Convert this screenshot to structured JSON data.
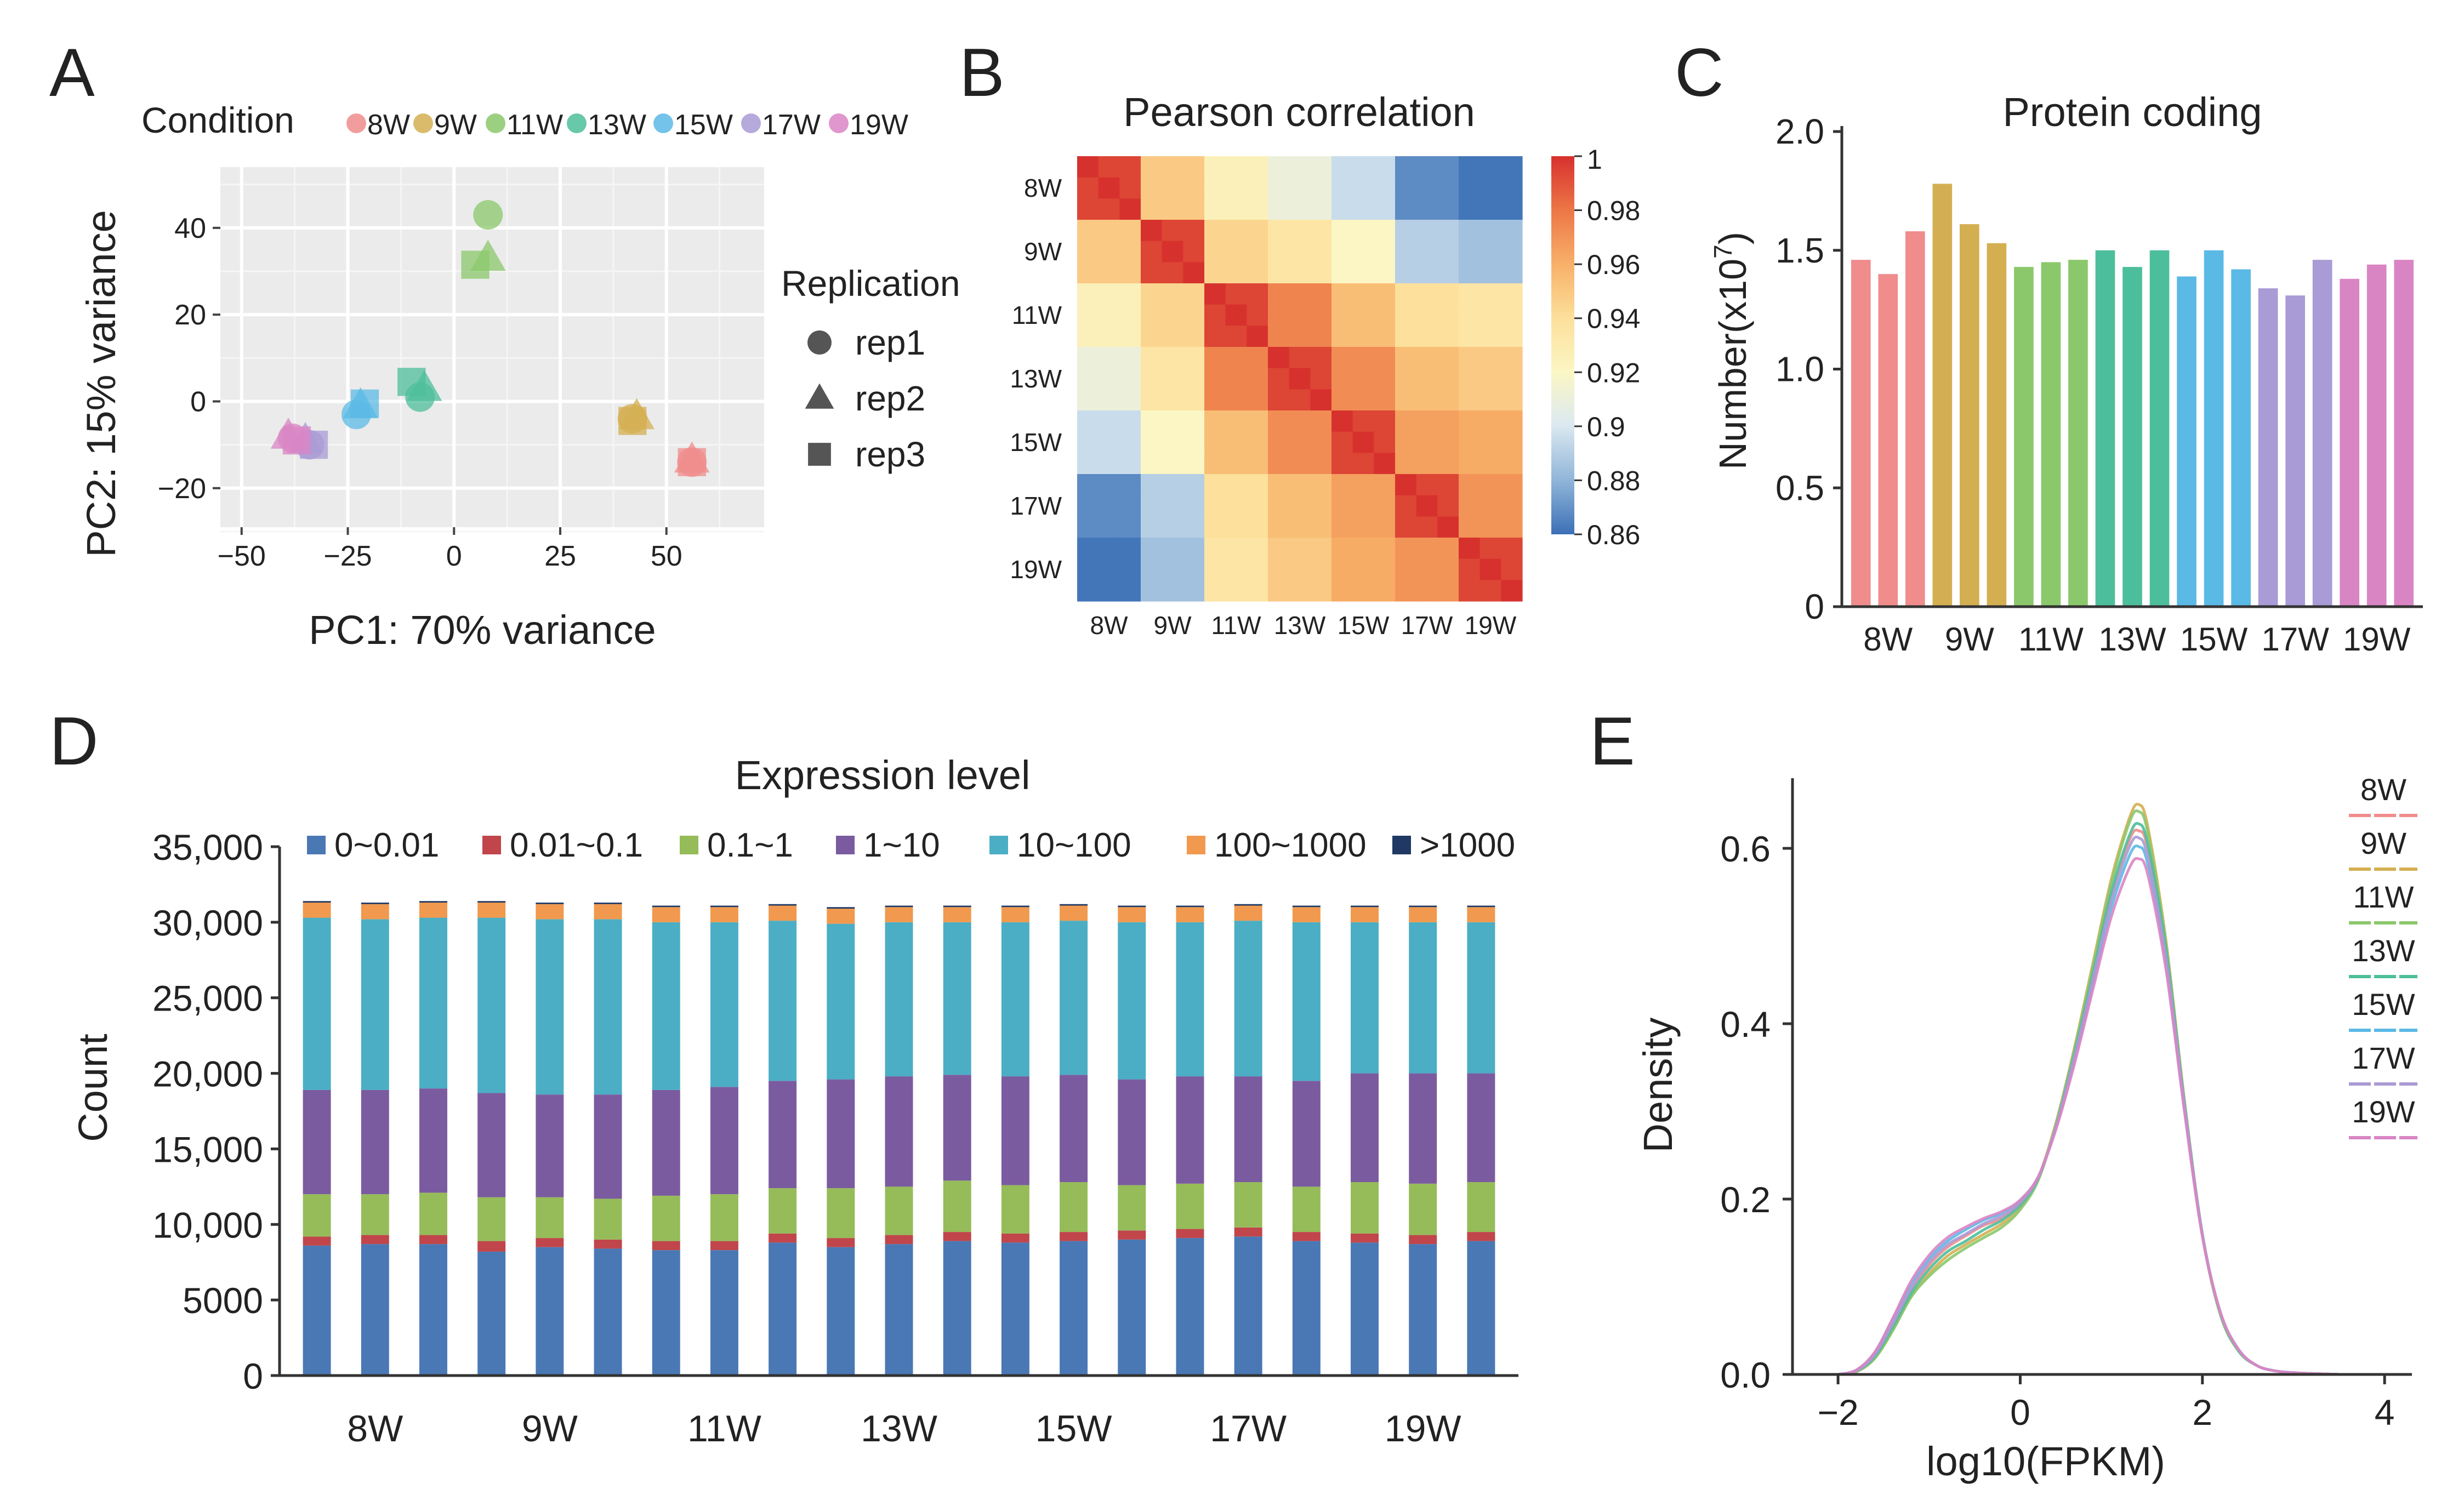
{
  "panel_letters": {
    "a": "A",
    "b": "B",
    "c": "C",
    "d": "D",
    "e": "E"
  },
  "colors": {
    "8W": "#F08C8C",
    "9W": "#D4AF52",
    "11W": "#8BC86B",
    "13W": "#4DBE9B",
    "15W": "#5BB9E6",
    "17W": "#A99BD6",
    "19W": "#D985C4",
    "bin_colors": [
      "#4A78B5",
      "#C0464B",
      "#95BC59",
      "#7B5B9F",
      "#4BAEC4",
      "#F1994E",
      "#1F3864"
    ]
  },
  "chart_data": [
    {
      "id": "pca",
      "type": "scatter",
      "xlabel": "PC1: 70% variance",
      "ylabel": "PC2: 15% variance",
      "xlim": [
        -55,
        73
      ],
      "ylim": [
        -29,
        54
      ],
      "xticks": [
        -50,
        -25,
        0,
        25,
        50
      ],
      "yticks": [
        -20,
        0,
        20,
        40
      ],
      "xtick_labels": [
        "−50",
        "−25",
        "0",
        "25",
        "50"
      ],
      "ytick_labels": [
        "−20",
        "0",
        "20",
        "40"
      ],
      "legend_condition_title": "Condition",
      "conditions": [
        "8W",
        "9W",
        "11W",
        "13W",
        "15W",
        "17W",
        "19W"
      ],
      "legend_rep_title": "Replication",
      "reps": [
        "rep1",
        "rep2",
        "rep3"
      ],
      "points": [
        {
          "cond": "8W",
          "rep": "rep1",
          "x": 56,
          "y": -14
        },
        {
          "cond": "8W",
          "rep": "rep2",
          "x": 56,
          "y": -13.5
        },
        {
          "cond": "8W",
          "rep": "rep3",
          "x": 56,
          "y": -14
        },
        {
          "cond": "9W",
          "rep": "rep1",
          "x": 42,
          "y": -4
        },
        {
          "cond": "9W",
          "rep": "rep2",
          "x": 43,
          "y": -3.5
        },
        {
          "cond": "9W",
          "rep": "rep3",
          "x": 42,
          "y": -4.5
        },
        {
          "cond": "11W",
          "rep": "rep1",
          "x": 8,
          "y": 43
        },
        {
          "cond": "11W",
          "rep": "rep2",
          "x": 8,
          "y": 33
        },
        {
          "cond": "11W",
          "rep": "rep3",
          "x": 5,
          "y": 31.5
        },
        {
          "cond": "13W",
          "rep": "rep1",
          "x": -8,
          "y": 1
        },
        {
          "cond": "13W",
          "rep": "rep2",
          "x": -7,
          "y": 3
        },
        {
          "cond": "13W",
          "rep": "rep3",
          "x": -10,
          "y": 4.5
        },
        {
          "cond": "15W",
          "rep": "rep1",
          "x": -23,
          "y": -3
        },
        {
          "cond": "15W",
          "rep": "rep2",
          "x": -22,
          "y": -1
        },
        {
          "cond": "15W",
          "rep": "rep3",
          "x": -21,
          "y": -0.5
        },
        {
          "cond": "17W",
          "rep": "rep1",
          "x": -34,
          "y": -10
        },
        {
          "cond": "17W",
          "rep": "rep2",
          "x": -35,
          "y": -9
        },
        {
          "cond": "17W",
          "rep": "rep3",
          "x": -33,
          "y": -10
        },
        {
          "cond": "19W",
          "rep": "rep1",
          "x": -38,
          "y": -8.5
        },
        {
          "cond": "19W",
          "rep": "rep2",
          "x": -39,
          "y": -8
        },
        {
          "cond": "19W",
          "rep": "rep3",
          "x": -37,
          "y": -9
        }
      ]
    },
    {
      "id": "pearson",
      "type": "heatmap",
      "title": "Pearson correlation",
      "groups": [
        "8W",
        "9W",
        "11W",
        "13W",
        "15W",
        "17W",
        "19W"
      ],
      "group_corr": [
        [
          1.0,
          0.95,
          0.925,
          0.91,
          0.895,
          0.868,
          0.862
        ],
        [
          0.95,
          1.0,
          0.945,
          0.935,
          0.92,
          0.89,
          0.885
        ],
        [
          0.925,
          0.945,
          1.0,
          0.975,
          0.955,
          0.94,
          0.935
        ],
        [
          0.91,
          0.935,
          0.975,
          1.0,
          0.972,
          0.955,
          0.95
        ],
        [
          0.895,
          0.92,
          0.955,
          0.972,
          1.0,
          0.966,
          0.962
        ],
        [
          0.868,
          0.89,
          0.94,
          0.955,
          0.966,
          1.0,
          0.97
        ],
        [
          0.862,
          0.885,
          0.935,
          0.95,
          0.962,
          0.97,
          1.0
        ]
      ],
      "colorbar_ticks": [
        1,
        0.98,
        0.96,
        0.94,
        0.92,
        0.9,
        0.88,
        0.86
      ],
      "colorbar_labels": [
        "1",
        "0.98",
        "0.96",
        "0.94",
        "0.92",
        "0.9",
        "0.88",
        "0.86"
      ],
      "color_range": [
        0.86,
        1.0
      ]
    },
    {
      "id": "protein",
      "type": "bar",
      "title": "Protein coding",
      "ylabel": "Number(x10",
      "ylabel_sup": "7",
      "ylabel_end": ")",
      "ylim": [
        0,
        2.0
      ],
      "yticks": [
        0,
        0.5,
        1.0,
        1.5,
        2.0
      ],
      "ytick_labels": [
        "0",
        "0.5",
        "1.0",
        "1.5",
        "2.0"
      ],
      "groups": [
        "8W",
        "9W",
        "11W",
        "13W",
        "15W",
        "17W",
        "19W"
      ],
      "values": [
        1.46,
        1.4,
        1.58,
        1.78,
        1.61,
        1.53,
        1.43,
        1.45,
        1.46,
        1.5,
        1.43,
        1.5,
        1.39,
        1.5,
        1.42,
        1.34,
        1.31,
        1.46,
        1.38,
        1.44,
        1.46
      ]
    },
    {
      "id": "expression",
      "type": "bar",
      "stacked": true,
      "title": "Expression level",
      "ylabel": "Count",
      "ylim": [
        0,
        35000
      ],
      "yticks": [
        0,
        5000,
        10000,
        15000,
        20000,
        25000,
        30000,
        35000
      ],
      "ytick_labels": [
        "0",
        "5000",
        "10,000",
        "15,000",
        "20,000",
        "25,000",
        "30,000",
        "35,000"
      ],
      "groups": [
        "8W",
        "9W",
        "11W",
        "13W",
        "15W",
        "17W",
        "19W"
      ],
      "bins": [
        "0~0.01",
        "0.01~0.1",
        "0.1~1",
        "1~10",
        "10~100",
        "100~1000",
        ">1000"
      ],
      "stacks": [
        [
          8600,
          600,
          2800,
          6900,
          11400,
          1000,
          100
        ],
        [
          8700,
          600,
          2700,
          6900,
          11300,
          1000,
          100
        ],
        [
          8700,
          600,
          2800,
          6900,
          11300,
          1000,
          100
        ],
        [
          8200,
          700,
          2900,
          6900,
          11600,
          1000,
          100
        ],
        [
          8500,
          600,
          2700,
          6800,
          11600,
          1000,
          100
        ],
        [
          8400,
          600,
          2700,
          6900,
          11600,
          1000,
          100
        ],
        [
          8300,
          600,
          3000,
          7000,
          11100,
          1000,
          100
        ],
        [
          8300,
          600,
          3100,
          7100,
          10900,
          1000,
          100
        ],
        [
          8800,
          600,
          3000,
          7100,
          10600,
          1000,
          100
        ],
        [
          8500,
          600,
          3300,
          7200,
          10300,
          1000,
          100
        ],
        [
          8700,
          600,
          3200,
          7300,
          10200,
          1000,
          100
        ],
        [
          8900,
          600,
          3400,
          7000,
          10100,
          1000,
          100
        ],
        [
          8800,
          600,
          3200,
          7200,
          10200,
          1000,
          100
        ],
        [
          8900,
          600,
          3300,
          7100,
          10200,
          1000,
          100
        ],
        [
          9000,
          600,
          3000,
          7000,
          10400,
          1000,
          100
        ],
        [
          9100,
          600,
          3000,
          7100,
          10200,
          1000,
          100
        ],
        [
          9200,
          600,
          3000,
          7000,
          10300,
          1000,
          100
        ],
        [
          8900,
          600,
          3000,
          7000,
          10500,
          1000,
          100
        ],
        [
          8800,
          600,
          3400,
          7200,
          10000,
          1000,
          100
        ],
        [
          8700,
          600,
          3400,
          7300,
          10000,
          1000,
          100
        ],
        [
          8900,
          600,
          3300,
          7200,
          10000,
          1000,
          100
        ]
      ]
    },
    {
      "id": "density",
      "type": "line",
      "xlabel": "log10(FPKM)",
      "ylabel": "Density",
      "xlim": [
        -2.5,
        4.3
      ],
      "ylim": [
        0,
        0.68
      ],
      "xticks": [
        -2,
        0,
        2,
        4
      ],
      "xtick_labels": [
        "−2",
        "0",
        "2",
        "4"
      ],
      "yticks": [
        0,
        0.2,
        0.4,
        0.6
      ],
      "ytick_labels": [
        "0.0",
        "0.2",
        "0.4",
        "0.6"
      ],
      "x": [
        -2.0,
        -1.8,
        -1.6,
        -1.4,
        -1.2,
        -1.0,
        -0.8,
        -0.6,
        -0.4,
        -0.2,
        0.0,
        0.2,
        0.4,
        0.6,
        0.8,
        1.0,
        1.2,
        1.3,
        1.4,
        1.6,
        1.8,
        2.0,
        2.2,
        2.4,
        2.6,
        2.8,
        3.0,
        3.2,
        3.5
      ],
      "series": [
        {
          "name": "8W",
          "values": [
            0.0,
            0.004,
            0.02,
            0.055,
            0.095,
            0.125,
            0.145,
            0.158,
            0.17,
            0.178,
            0.195,
            0.225,
            0.285,
            0.365,
            0.455,
            0.545,
            0.61,
            0.62,
            0.6,
            0.48,
            0.31,
            0.16,
            0.07,
            0.028,
            0.01,
            0.004,
            0.002,
            0.001,
            0.0
          ]
        },
        {
          "name": "9W",
          "values": [
            0.0,
            0.003,
            0.018,
            0.05,
            0.088,
            0.115,
            0.135,
            0.148,
            0.16,
            0.172,
            0.19,
            0.225,
            0.29,
            0.375,
            0.47,
            0.565,
            0.635,
            0.65,
            0.625,
            0.495,
            0.315,
            0.16,
            0.068,
            0.027,
            0.01,
            0.004,
            0.002,
            0.001,
            0.0
          ]
        },
        {
          "name": "11W",
          "values": [
            0.0,
            0.003,
            0.018,
            0.05,
            0.088,
            0.112,
            0.13,
            0.144,
            0.156,
            0.168,
            0.188,
            0.222,
            0.288,
            0.372,
            0.466,
            0.56,
            0.63,
            0.642,
            0.618,
            0.49,
            0.312,
            0.158,
            0.067,
            0.026,
            0.01,
            0.004,
            0.002,
            0.001,
            0.0
          ]
        },
        {
          "name": "13W",
          "values": [
            0.0,
            0.004,
            0.02,
            0.054,
            0.092,
            0.12,
            0.14,
            0.152,
            0.165,
            0.176,
            0.193,
            0.224,
            0.286,
            0.368,
            0.458,
            0.55,
            0.615,
            0.628,
            0.605,
            0.485,
            0.312,
            0.16,
            0.069,
            0.027,
            0.01,
            0.004,
            0.002,
            0.001,
            0.0
          ]
        },
        {
          "name": "15W",
          "values": [
            0.0,
            0.005,
            0.024,
            0.062,
            0.102,
            0.132,
            0.152,
            0.165,
            0.176,
            0.184,
            0.198,
            0.226,
            0.284,
            0.36,
            0.446,
            0.532,
            0.592,
            0.602,
            0.582,
            0.47,
            0.305,
            0.158,
            0.07,
            0.028,
            0.01,
            0.004,
            0.002,
            0.001,
            0.0
          ]
        },
        {
          "name": "17W",
          "values": [
            0.0,
            0.004,
            0.022,
            0.058,
            0.098,
            0.128,
            0.148,
            0.16,
            0.172,
            0.181,
            0.196,
            0.225,
            0.285,
            0.364,
            0.452,
            0.54,
            0.602,
            0.612,
            0.59,
            0.475,
            0.308,
            0.159,
            0.07,
            0.028,
            0.01,
            0.004,
            0.002,
            0.001,
            0.0
          ]
        },
        {
          "name": "19W",
          "values": [
            0.0,
            0.005,
            0.025,
            0.064,
            0.106,
            0.136,
            0.156,
            0.168,
            0.178,
            0.186,
            0.199,
            0.226,
            0.282,
            0.356,
            0.44,
            0.522,
            0.578,
            0.588,
            0.57,
            0.462,
            0.302,
            0.157,
            0.07,
            0.028,
            0.01,
            0.004,
            0.002,
            0.001,
            0.0
          ]
        }
      ]
    }
  ]
}
